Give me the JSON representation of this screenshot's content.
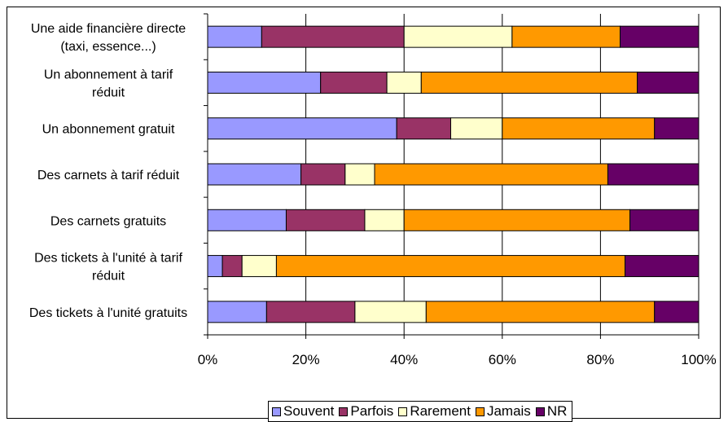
{
  "chart_data": {
    "type": "bar",
    "orientation": "horizontal",
    "stacked": "percent",
    "categories": [
      "Une aide financière directe (taxi, essence...)",
      "Un abonnement à tarif réduit",
      "Un abonnement gratuit",
      "Des carnets à tarif réduit",
      "Des carnets gratuits",
      "Des tickets à l'unité à tarif réduit",
      "Des tickets à l'unité gratuits"
    ],
    "category_lines": [
      [
        "Une aide financière directe",
        "(taxi, essence...)"
      ],
      [
        "Un abonnement à tarif",
        "réduit"
      ],
      [
        "Un abonnement gratuit"
      ],
      [
        "Des carnets à tarif réduit"
      ],
      [
        "Des carnets gratuits"
      ],
      [
        "Des tickets à l'unité à tarif",
        "réduit"
      ],
      [
        "Des tickets à l'unité gratuits"
      ]
    ],
    "series": [
      {
        "name": "Souvent",
        "color": "#9999ff",
        "values": [
          11,
          23,
          38.5,
          19,
          16,
          3,
          12
        ]
      },
      {
        "name": "Parfois",
        "color": "#993366",
        "values": [
          29,
          13.5,
          11,
          9,
          16,
          4,
          18
        ]
      },
      {
        "name": "Rarement",
        "color": "#ffffcc",
        "values": [
          22,
          7,
          10.5,
          6,
          8,
          7,
          14.5
        ]
      },
      {
        "name": "Jamais",
        "color": "#ff9900",
        "values": [
          22,
          44,
          31,
          47.5,
          46,
          71,
          46.5
        ]
      },
      {
        "name": "NR",
        "color": "#660066",
        "values": [
          16,
          12.5,
          9,
          18.5,
          14,
          15,
          9
        ]
      }
    ],
    "xlim": [
      0,
      100
    ],
    "x_ticks": [
      "0%",
      "20%",
      "40%",
      "60%",
      "80%",
      "100%"
    ],
    "grid": true,
    "legend_position": "bottom"
  }
}
